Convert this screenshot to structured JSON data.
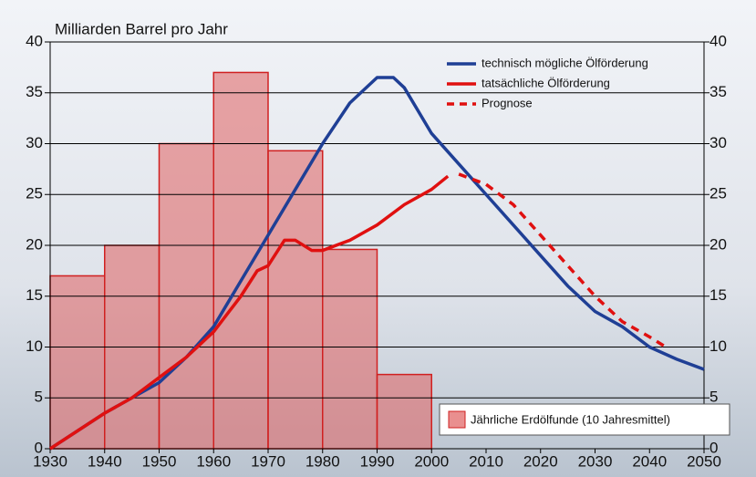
{
  "chart_data": {
    "type": "line",
    "title": "Milliarden Barrel pro Jahr",
    "xlim": [
      1930,
      2050
    ],
    "xticks": [
      1930,
      1940,
      1950,
      1960,
      1970,
      1980,
      1990,
      2000,
      2010,
      2020,
      2030,
      2040,
      2050
    ],
    "ylim": [
      0,
      40
    ],
    "yticks": [
      0,
      5,
      10,
      15,
      20,
      25,
      30,
      35,
      40
    ],
    "y2lim": [
      0,
      40
    ],
    "y2ticks": [
      0,
      5,
      10,
      15,
      20,
      25,
      30,
      35,
      40
    ],
    "grid": true,
    "legend": "upper right",
    "histogram": {
      "name": "Jährliche Erdölfunde (10 Jahresmittel)",
      "color": "#e06060",
      "bins": [
        1930,
        1940,
        1950,
        1960,
        1970,
        1980,
        1990,
        2000
      ],
      "counts": [
        17,
        20,
        30,
        37,
        29.3,
        19.6,
        7.3
      ]
    },
    "series": [
      {
        "name": "technisch mögliche Ölförderung",
        "color": "#1f3f95",
        "dash": false,
        "x": [
          1930,
          1940,
          1945,
          1950,
          1955,
          1960,
          1965,
          1970,
          1975,
          1980,
          1985,
          1990,
          1993,
          1995,
          2000,
          2005,
          2010,
          2015,
          2020,
          2025,
          2030,
          2035,
          2040,
          2045,
          2050
        ],
        "values": [
          0,
          3.5,
          5,
          6.5,
          9,
          12,
          16.5,
          21,
          25.5,
          30,
          34,
          36.5,
          36.5,
          35.5,
          31,
          28,
          25,
          22,
          19,
          16,
          13.5,
          12,
          10,
          8.8,
          7.8
        ]
      },
      {
        "name": "tatsächliche Ölförderung",
        "color": "#e01010",
        "dash": false,
        "x": [
          1930,
          1940,
          1945,
          1950,
          1955,
          1960,
          1965,
          1968,
          1970,
          1973,
          1975,
          1978,
          1980,
          1985,
          1990,
          1995,
          2000,
          2003
        ],
        "values": [
          0,
          3.5,
          5,
          7,
          9,
          11.5,
          15,
          17.5,
          18,
          20.5,
          20.5,
          19.5,
          19.5,
          20.5,
          22,
          24,
          25.5,
          26.8
        ]
      },
      {
        "name": "Prognose",
        "color": "#e01010",
        "dash": true,
        "x": [
          2005,
          2010,
          2015,
          2020,
          2025,
          2030,
          2035,
          2040,
          2043
        ],
        "values": [
          27,
          26,
          24,
          21,
          18,
          15,
          12.5,
          11,
          10
        ]
      }
    ]
  }
}
